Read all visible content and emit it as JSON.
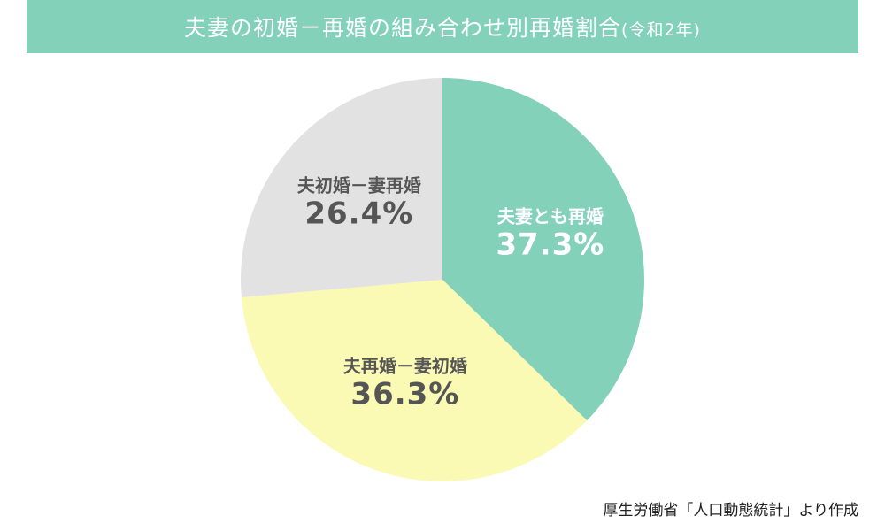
{
  "colors": {
    "title_bg": "#84d1b9",
    "title_text": "#ffffff",
    "label_dark": "#555555",
    "label_light": "#ffffff"
  },
  "chart_data": {
    "type": "pie",
    "title": "夫妻の初婚－再婚の組み合わせ別再婚割合",
    "title_suffix": "(令和2年)",
    "slices": [
      {
        "label": "夫妻とも再婚",
        "value": 37.3,
        "value_text": "37.3%",
        "color": "#84d1b9",
        "label_color": "#ffffff"
      },
      {
        "label": "夫再婚－妻初婚",
        "value": 36.3,
        "value_text": "36.3%",
        "color": "#fafab5",
        "label_color": "#555555"
      },
      {
        "label": "夫初婚－妻再婚",
        "value": 26.4,
        "value_text": "26.4%",
        "color": "#e2e2e2",
        "label_color": "#555555"
      }
    ],
    "start_angle": "12 o'clock",
    "direction": "clockwise",
    "source": "厚生労働省「人口動態統計」より作成"
  }
}
